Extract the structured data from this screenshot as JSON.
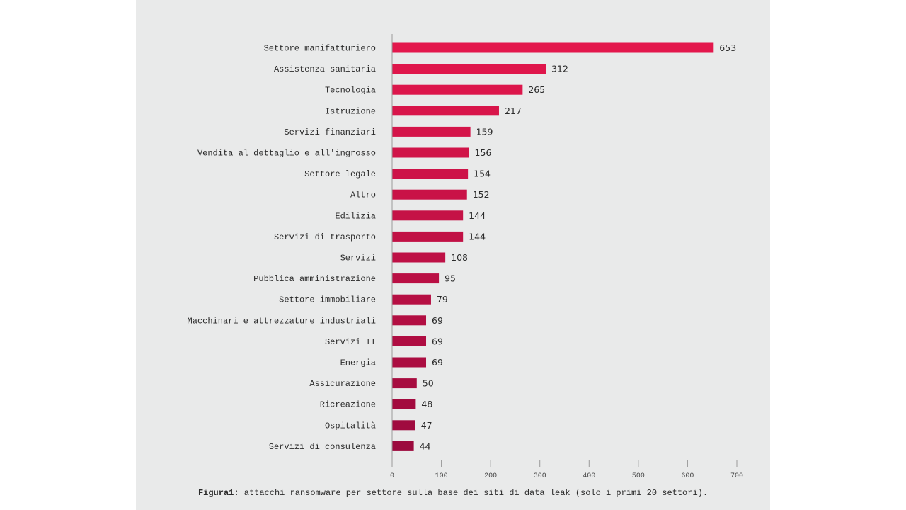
{
  "chart_data": {
    "type": "bar",
    "orientation": "horizontal",
    "categories": [
      "Settore manifatturiero",
      "Assistenza sanitaria",
      "Tecnologia",
      "Istruzione",
      "Servizi finanziari",
      "Vendita al dettaglio e all'ingrosso",
      "Settore legale",
      "Altro",
      "Edilizia",
      "Servizi di trasporto",
      "Servizi",
      "Pubblica amministrazione",
      "Settore immobiliare",
      "Macchinari e attrezzature industriali",
      "Servizi IT",
      "Energia",
      "Assicurazione",
      "Ricreazione",
      "Ospitalità",
      "Servizi di consulenza"
    ],
    "values": [
      653,
      312,
      265,
      217,
      159,
      156,
      154,
      152,
      144,
      144,
      108,
      95,
      79,
      69,
      69,
      69,
      50,
      48,
      47,
      44
    ],
    "xlim": [
      0,
      700
    ],
    "xticks": [
      0,
      100,
      200,
      300,
      400,
      500,
      600,
      700
    ],
    "grid": false,
    "colors": {
      "bar_top": "#e3174c",
      "bar_bottom": "#9c0a3e",
      "panel_bg": "#e9eaea",
      "axis": "#9a9a9a"
    }
  },
  "caption": {
    "label": "Figura1:",
    "text": " attacchi ransomware per settore sulla base dei siti di data leak (solo i primi 20 settori)."
  }
}
